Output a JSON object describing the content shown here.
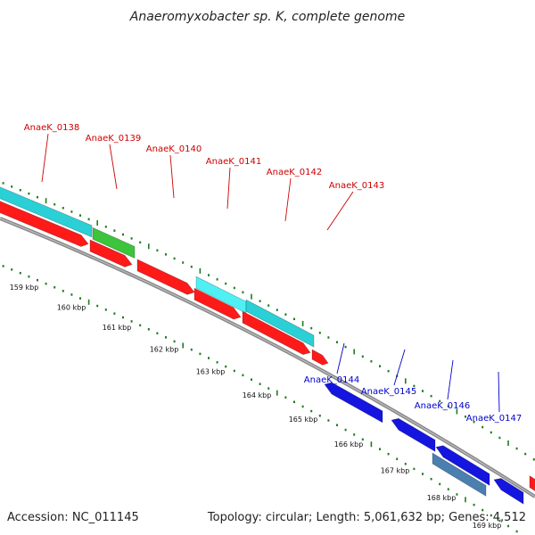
{
  "title": "Anaeromyxobacter sp. K, complete genome",
  "footer": {
    "accession": "Accession: NC_011145",
    "info": "Topology: circular; Length: 5,061,632 bp; Genes: 4,512"
  },
  "colors": {
    "background": "#ffffff",
    "backbone": "#888888",
    "tick_green": "#1f7a1f",
    "label_forward": "#cc0000",
    "label_reverse": "#0000cc",
    "gene_red": "#ff1a1a",
    "gene_cyan": "#2ad0d6",
    "gene_light_cyan": "#4ff0f4",
    "gene_green": "#3cc43c",
    "gene_blue": "#1515e0",
    "gene_steel": "#4a7fb0"
  },
  "scale_labels": [
    "159 kbp",
    "160 kbp",
    "161 kbp",
    "162 kbp",
    "163 kbp",
    "164 kbp",
    "165 kbp",
    "166 kbp",
    "167 kbp",
    "168 kbp",
    "169 kbp"
  ],
  "gene_labels_forward": [
    "AnaeK_0138",
    "AnaeK_0139",
    "AnaeK_0140",
    "AnaeK_0141",
    "AnaeK_0142",
    "AnaeK_0143"
  ],
  "gene_labels_reverse": [
    "AnaeK_0144",
    "AnaeK_0145",
    "AnaeK_0146",
    "AnaeK_0147"
  ]
}
